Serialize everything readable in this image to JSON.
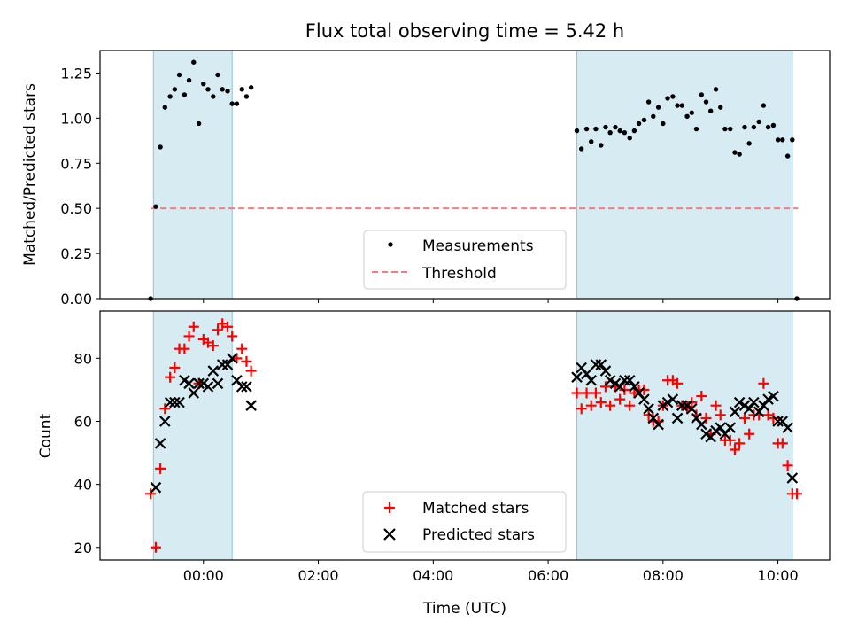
{
  "chart_data": [
    {
      "type": "scatter",
      "title": "Flux total observing time = 5.42 h",
      "xlabel": "",
      "ylabel": "Matched/Predicted stars",
      "ylim": [
        0,
        1.375
      ],
      "yticks": [
        "0.00",
        "0.25",
        "0.50",
        "0.75",
        "1.00",
        "1.25"
      ],
      "ytick_values": [
        0,
        0.25,
        0.5,
        0.75,
        1.0,
        1.25
      ],
      "shaded_intervals": [
        [
          -0.87,
          0.5
        ],
        [
          6.5,
          10.25
        ]
      ],
      "threshold": {
        "name": "Threshold",
        "value": 0.5,
        "x_range": [
          -0.92,
          10.35
        ],
        "color": "#f08080"
      },
      "legend": {
        "position": "lower-center",
        "entries": [
          "Measurements",
          "Threshold"
        ]
      },
      "series": [
        {
          "name": "Measurements",
          "color": "#000000",
          "points": [
            [
              -0.92,
              0.0
            ],
            [
              -0.83,
              0.51
            ],
            [
              -0.75,
              0.84
            ],
            [
              -0.67,
              1.06
            ],
            [
              -0.58,
              1.12
            ],
            [
              -0.5,
              1.16
            ],
            [
              -0.42,
              1.24
            ],
            [
              -0.33,
              1.13
            ],
            [
              -0.25,
              1.21
            ],
            [
              -0.17,
              1.31
            ],
            [
              -0.08,
              0.97
            ],
            [
              0.0,
              1.19
            ],
            [
              0.08,
              1.16
            ],
            [
              0.17,
              1.12
            ],
            [
              0.25,
              1.24
            ],
            [
              0.33,
              1.16
            ],
            [
              0.42,
              1.15
            ],
            [
              0.5,
              1.08
            ],
            [
              0.58,
              1.08
            ],
            [
              0.67,
              1.16
            ],
            [
              0.75,
              1.12
            ],
            [
              0.83,
              1.17
            ],
            [
              6.5,
              0.93
            ],
            [
              6.58,
              0.83
            ],
            [
              6.67,
              0.94
            ],
            [
              6.75,
              0.87
            ],
            [
              6.83,
              0.94
            ],
            [
              6.92,
              0.85
            ],
            [
              7.0,
              0.95
            ],
            [
              7.08,
              0.92
            ],
            [
              7.17,
              0.95
            ],
            [
              7.25,
              0.93
            ],
            [
              7.33,
              0.92
            ],
            [
              7.42,
              0.89
            ],
            [
              7.5,
              0.93
            ],
            [
              7.58,
              0.97
            ],
            [
              7.67,
              0.99
            ],
            [
              7.75,
              1.09
            ],
            [
              7.83,
              1.01
            ],
            [
              7.92,
              1.06
            ],
            [
              8.0,
              0.97
            ],
            [
              8.08,
              1.11
            ],
            [
              8.17,
              1.12
            ],
            [
              8.25,
              1.07
            ],
            [
              8.33,
              1.07
            ],
            [
              8.42,
              1.01
            ],
            [
              8.5,
              1.03
            ],
            [
              8.58,
              0.94
            ],
            [
              8.67,
              1.13
            ],
            [
              8.75,
              1.09
            ],
            [
              8.83,
              1.04
            ],
            [
              8.92,
              1.16
            ],
            [
              9.0,
              1.06
            ],
            [
              9.08,
              0.94
            ],
            [
              9.17,
              0.94
            ],
            [
              9.25,
              0.81
            ],
            [
              9.33,
              0.8
            ],
            [
              9.42,
              0.95
            ],
            [
              9.5,
              0.86
            ],
            [
              9.58,
              0.95
            ],
            [
              9.67,
              0.98
            ],
            [
              9.75,
              1.07
            ],
            [
              9.83,
              0.95
            ],
            [
              9.92,
              0.96
            ],
            [
              10.0,
              0.88
            ],
            [
              10.08,
              0.88
            ],
            [
              10.17,
              0.79
            ],
            [
              10.25,
              0.88
            ],
            [
              10.33,
              0.0
            ]
          ]
        }
      ]
    },
    {
      "type": "scatter",
      "title": "",
      "xlabel": "Time (UTC)",
      "ylabel": "Count",
      "xlim": [
        -1.8,
        10.9
      ],
      "ylim": [
        16,
        95
      ],
      "xticks": [
        "00:00",
        "02:00",
        "04:00",
        "06:00",
        "08:00",
        "10:00"
      ],
      "xtick_values": [
        0,
        2,
        4,
        6,
        8,
        10
      ],
      "yticks": [
        "20",
        "40",
        "60",
        "80"
      ],
      "ytick_values": [
        20,
        40,
        60,
        80
      ],
      "shaded_intervals": [
        [
          -0.87,
          0.5
        ],
        [
          6.5,
          10.25
        ]
      ],
      "legend": {
        "position": "lower-center",
        "entries": [
          "Matched stars",
          "Predicted stars"
        ]
      },
      "series": [
        {
          "name": "Matched stars",
          "marker": "plus",
          "color": "#ff0000",
          "points": [
            [
              -0.92,
              37
            ],
            [
              -0.83,
              20
            ],
            [
              -0.75,
              45
            ],
            [
              -0.67,
              64
            ],
            [
              -0.58,
              74
            ],
            [
              -0.5,
              77
            ],
            [
              -0.42,
              83
            ],
            [
              -0.33,
              83
            ],
            [
              -0.25,
              87
            ],
            [
              -0.17,
              90
            ],
            [
              -0.08,
              72
            ],
            [
              0.0,
              86
            ],
            [
              0.08,
              85
            ],
            [
              0.17,
              84
            ],
            [
              0.25,
              89
            ],
            [
              0.33,
              91
            ],
            [
              0.42,
              90
            ],
            [
              0.5,
              87
            ],
            [
              0.58,
              80
            ],
            [
              0.67,
              83
            ],
            [
              0.75,
              79
            ],
            [
              0.83,
              76
            ],
            [
              6.5,
              69
            ],
            [
              6.58,
              64
            ],
            [
              6.67,
              69
            ],
            [
              6.75,
              65
            ],
            [
              6.83,
              69
            ],
            [
              6.92,
              66
            ],
            [
              7.0,
              71
            ],
            [
              7.08,
              65
            ],
            [
              7.17,
              71
            ],
            [
              7.25,
              67
            ],
            [
              7.33,
              70
            ],
            [
              7.42,
              65
            ],
            [
              7.5,
              69
            ],
            [
              7.58,
              70
            ],
            [
              7.67,
              70
            ],
            [
              7.75,
              62
            ],
            [
              7.83,
              60
            ],
            [
              7.92,
              60
            ],
            [
              8.0,
              65
            ],
            [
              8.08,
              73
            ],
            [
              8.17,
              73
            ],
            [
              8.25,
              72
            ],
            [
              8.33,
              65
            ],
            [
              8.42,
              64
            ],
            [
              8.5,
              66
            ],
            [
              8.58,
              62
            ],
            [
              8.67,
              68
            ],
            [
              8.75,
              61
            ],
            [
              8.83,
              56
            ],
            [
              8.92,
              65
            ],
            [
              9.0,
              62
            ],
            [
              9.08,
              54
            ],
            [
              9.17,
              54
            ],
            [
              9.25,
              51
            ],
            [
              9.33,
              53
            ],
            [
              9.42,
              61
            ],
            [
              9.5,
              56
            ],
            [
              9.58,
              62
            ],
            [
              9.67,
              62
            ],
            [
              9.75,
              72
            ],
            [
              9.83,
              62
            ],
            [
              9.92,
              61
            ],
            [
              10.0,
              53
            ],
            [
              10.08,
              53
            ],
            [
              10.17,
              46
            ],
            [
              10.25,
              37
            ],
            [
              10.33,
              37
            ]
          ]
        },
        {
          "name": "Predicted stars",
          "marker": "x",
          "color": "#000000",
          "points": [
            [
              -0.83,
              39
            ],
            [
              -0.75,
              53
            ],
            [
              -0.67,
              60
            ],
            [
              -0.58,
              66
            ],
            [
              -0.5,
              66
            ],
            [
              -0.42,
              66
            ],
            [
              -0.33,
              73
            ],
            [
              -0.25,
              72
            ],
            [
              -0.17,
              69
            ],
            [
              -0.08,
              72
            ],
            [
              0.0,
              72
            ],
            [
              0.08,
              71
            ],
            [
              0.17,
              76
            ],
            [
              0.25,
              72
            ],
            [
              0.33,
              78
            ],
            [
              0.42,
              78
            ],
            [
              0.5,
              80
            ],
            [
              0.58,
              73
            ],
            [
              0.67,
              71
            ],
            [
              0.75,
              71
            ],
            [
              0.83,
              65
            ],
            [
              6.5,
              74
            ],
            [
              6.58,
              77
            ],
            [
              6.67,
              75
            ],
            [
              6.75,
              73
            ],
            [
              6.83,
              78
            ],
            [
              6.92,
              78
            ],
            [
              7.0,
              76
            ],
            [
              7.08,
              73
            ],
            [
              7.17,
              72
            ],
            [
              7.25,
              71
            ],
            [
              7.33,
              73
            ],
            [
              7.42,
              73
            ],
            [
              7.5,
              71
            ],
            [
              7.58,
              69
            ],
            [
              7.67,
              67
            ],
            [
              7.75,
              64
            ],
            [
              7.83,
              61
            ],
            [
              7.92,
              59
            ],
            [
              8.0,
              65
            ],
            [
              8.08,
              66
            ],
            [
              8.17,
              67
            ],
            [
              8.25,
              61
            ],
            [
              8.33,
              65
            ],
            [
              8.42,
              65
            ],
            [
              8.5,
              64
            ],
            [
              8.58,
              61
            ],
            [
              8.67,
              59
            ],
            [
              8.75,
              56
            ],
            [
              8.83,
              55
            ],
            [
              8.92,
              57
            ],
            [
              9.0,
              58
            ],
            [
              9.08,
              56
            ],
            [
              9.17,
              58
            ],
            [
              9.25,
              63
            ],
            [
              9.33,
              66
            ],
            [
              9.42,
              65
            ],
            [
              9.5,
              64
            ],
            [
              9.58,
              66
            ],
            [
              9.67,
              63
            ],
            [
              9.75,
              65
            ],
            [
              9.83,
              67
            ],
            [
              9.92,
              68
            ],
            [
              10.0,
              60
            ],
            [
              10.08,
              60
            ],
            [
              10.17,
              58
            ],
            [
              10.25,
              42
            ]
          ]
        }
      ]
    }
  ]
}
